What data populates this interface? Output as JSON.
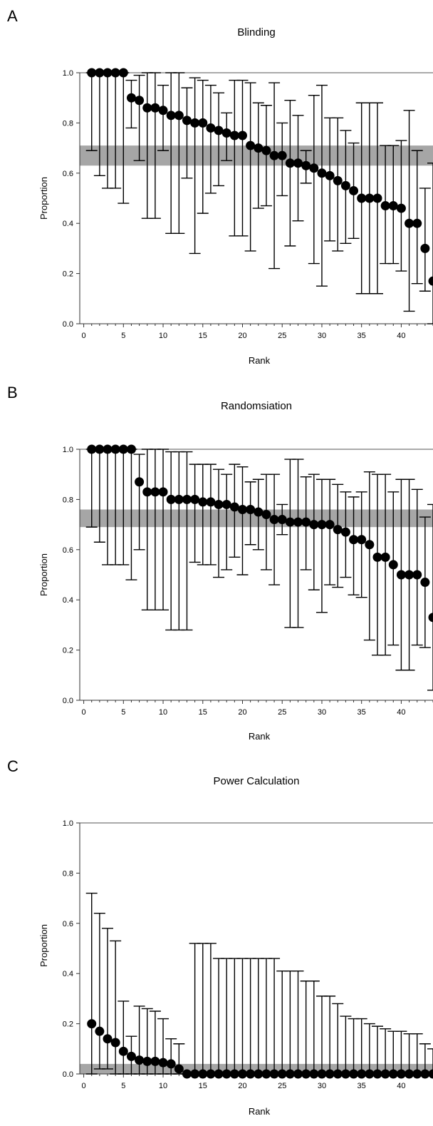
{
  "chart_data": [
    {
      "panel": "A",
      "type": "scatter",
      "title": "Blinding",
      "xlabel": "Rank",
      "ylabel": "Proportion",
      "xlim": [
        -0.5,
        44
      ],
      "ylim": [
        0,
        1.0
      ],
      "xticks": [
        0,
        5,
        10,
        15,
        20,
        25,
        30,
        35,
        40
      ],
      "yticks": [
        0.0,
        0.2,
        0.4,
        0.6,
        0.8,
        1.0
      ],
      "pooled_band": [
        0.63,
        0.71
      ],
      "x": [
        1,
        2,
        3,
        4,
        5,
        6,
        7,
        8,
        9,
        10,
        11,
        12,
        13,
        14,
        15,
        16,
        17,
        18,
        19,
        20,
        21,
        22,
        23,
        24,
        25,
        26,
        27,
        28,
        29,
        30,
        31,
        32,
        33,
        34,
        35,
        36,
        37,
        38,
        39,
        40,
        41,
        42,
        43,
        44
      ],
      "values": [
        1.0,
        1.0,
        1.0,
        1.0,
        1.0,
        0.9,
        0.89,
        0.86,
        0.86,
        0.85,
        0.83,
        0.83,
        0.81,
        0.8,
        0.8,
        0.78,
        0.77,
        0.76,
        0.75,
        0.75,
        0.71,
        0.7,
        0.69,
        0.67,
        0.67,
        0.64,
        0.64,
        0.63,
        0.62,
        0.6,
        0.59,
        0.57,
        0.55,
        0.53,
        0.5,
        0.5,
        0.5,
        0.47,
        0.47,
        0.46,
        0.4,
        0.4,
        0.3,
        0.17
      ],
      "lower": [
        0.69,
        0.59,
        0.54,
        0.54,
        0.48,
        0.78,
        0.65,
        0.42,
        0.42,
        0.69,
        0.36,
        0.36,
        0.58,
        0.28,
        0.44,
        0.52,
        0.55,
        0.65,
        0.35,
        0.35,
        0.29,
        0.46,
        0.47,
        0.22,
        0.51,
        0.31,
        0.41,
        0.56,
        0.24,
        0.15,
        0.33,
        0.29,
        0.32,
        0.34,
        0.12,
        0.12,
        0.12,
        0.24,
        0.24,
        0.21,
        0.05,
        0.16,
        0.13,
        0.0
      ],
      "upper": [
        1.0,
        1.0,
        1.0,
        1.0,
        1.0,
        0.97,
        0.99,
        1.0,
        1.0,
        0.95,
        1.0,
        1.0,
        0.94,
        0.98,
        0.97,
        0.95,
        0.92,
        0.84,
        0.97,
        0.97,
        0.96,
        0.88,
        0.87,
        0.96,
        0.8,
        0.89,
        0.83,
        0.69,
        0.91,
        0.95,
        0.82,
        0.82,
        0.77,
        0.72,
        0.88,
        0.88,
        0.88,
        0.71,
        0.71,
        0.73,
        0.85,
        0.69,
        0.54,
        0.64
      ]
    },
    {
      "panel": "B",
      "type": "scatter",
      "title": "Randomsiation",
      "xlabel": "Rank",
      "ylabel": "Proportion",
      "xlim": [
        -0.5,
        44
      ],
      "ylim": [
        0,
        1.0
      ],
      "xticks": [
        0,
        5,
        10,
        15,
        20,
        25,
        30,
        35,
        40
      ],
      "yticks": [
        0.0,
        0.2,
        0.4,
        0.6,
        0.8,
        1.0
      ],
      "pooled_band": [
        0.69,
        0.76
      ],
      "x": [
        1,
        2,
        3,
        4,
        5,
        6,
        7,
        8,
        9,
        10,
        11,
        12,
        13,
        14,
        15,
        16,
        17,
        18,
        19,
        20,
        21,
        22,
        23,
        24,
        25,
        26,
        27,
        28,
        29,
        30,
        31,
        32,
        33,
        34,
        35,
        36,
        37,
        38,
        39,
        40,
        41,
        42,
        43,
        44
      ],
      "values": [
        1.0,
        1.0,
        1.0,
        1.0,
        1.0,
        1.0,
        0.87,
        0.83,
        0.83,
        0.83,
        0.8,
        0.8,
        0.8,
        0.8,
        0.79,
        0.79,
        0.78,
        0.78,
        0.77,
        0.76,
        0.76,
        0.75,
        0.74,
        0.72,
        0.72,
        0.71,
        0.71,
        0.71,
        0.7,
        0.7,
        0.7,
        0.68,
        0.67,
        0.64,
        0.64,
        0.62,
        0.57,
        0.57,
        0.54,
        0.5,
        0.5,
        0.5,
        0.47,
        0.33
      ],
      "lower": [
        0.69,
        0.63,
        0.54,
        0.54,
        0.54,
        0.48,
        0.6,
        0.36,
        0.36,
        0.36,
        0.28,
        0.28,
        0.28,
        0.55,
        0.54,
        0.54,
        0.49,
        0.52,
        0.57,
        0.5,
        0.62,
        0.6,
        0.52,
        0.46,
        0.66,
        0.29,
        0.29,
        0.52,
        0.44,
        0.35,
        0.46,
        0.45,
        0.49,
        0.42,
        0.41,
        0.24,
        0.18,
        0.18,
        0.22,
        0.12,
        0.12,
        0.22,
        0.21,
        0.04
      ],
      "upper": [
        1.0,
        1.0,
        1.0,
        1.0,
        1.0,
        1.0,
        0.98,
        1.0,
        1.0,
        1.0,
        0.99,
        0.99,
        0.99,
        0.94,
        0.94,
        0.94,
        0.92,
        0.9,
        0.94,
        0.93,
        0.87,
        0.88,
        0.9,
        0.9,
        0.78,
        0.96,
        0.96,
        0.89,
        0.9,
        0.88,
        0.88,
        0.86,
        0.83,
        0.81,
        0.83,
        0.91,
        0.9,
        0.9,
        0.83,
        0.88,
        0.88,
        0.84,
        0.73,
        0.78
      ]
    },
    {
      "panel": "C",
      "type": "scatter",
      "title": "Power Calculation",
      "xlabel": "Rank",
      "ylabel": "Proportion",
      "xlim": [
        -0.5,
        44
      ],
      "ylim": [
        0,
        1.0
      ],
      "xticks": [
        0,
        5,
        10,
        15,
        20,
        25,
        30,
        35,
        40
      ],
      "yticks": [
        0.0,
        0.2,
        0.4,
        0.6,
        0.8,
        1.0
      ],
      "pooled_band": [
        0.0,
        0.04
      ],
      "x": [
        1,
        2,
        3,
        4,
        5,
        6,
        7,
        8,
        9,
        10,
        11,
        12,
        13,
        14,
        15,
        16,
        17,
        18,
        19,
        20,
        21,
        22,
        23,
        24,
        25,
        26,
        27,
        28,
        29,
        30,
        31,
        32,
        33,
        34,
        35,
        36,
        37,
        38,
        39,
        40,
        41,
        42,
        43,
        44
      ],
      "values": [
        0.2,
        0.17,
        0.14,
        0.125,
        0.09,
        0.07,
        0.055,
        0.05,
        0.05,
        0.045,
        0.04,
        0.02,
        0.0,
        0.0,
        0.0,
        0.0,
        0.0,
        0.0,
        0.0,
        0.0,
        0.0,
        0.0,
        0.0,
        0.0,
        0.0,
        0.0,
        0.0,
        0.0,
        0.0,
        0.0,
        0.0,
        0.0,
        0.0,
        0.0,
        0.0,
        0.0,
        0.0,
        0.0,
        0.0,
        0.0,
        0.0,
        0.0,
        0.0,
        0.0
      ],
      "lower": [
        0.0,
        0.02,
        0.02,
        0.0,
        0.0,
        0.0,
        0.0,
        0.0,
        0.0,
        0.0,
        0.0,
        0.0,
        0.0,
        0.0,
        0.0,
        0.0,
        0.0,
        0.0,
        0.0,
        0.0,
        0.0,
        0.0,
        0.0,
        0.0,
        0.0,
        0.0,
        0.0,
        0.0,
        0.0,
        0.0,
        0.0,
        0.0,
        0.0,
        0.0,
        0.0,
        0.0,
        0.0,
        0.0,
        0.0,
        0.0,
        0.0,
        0.0,
        0.0,
        0.0
      ],
      "upper": [
        0.72,
        0.64,
        0.58,
        0.53,
        0.29,
        0.15,
        0.27,
        0.26,
        0.25,
        0.22,
        0.14,
        0.12,
        0.0,
        0.52,
        0.52,
        0.52,
        0.46,
        0.46,
        0.46,
        0.46,
        0.46,
        0.46,
        0.46,
        0.46,
        0.41,
        0.41,
        0.41,
        0.37,
        0.37,
        0.31,
        0.31,
        0.28,
        0.23,
        0.22,
        0.22,
        0.2,
        0.19,
        0.18,
        0.17,
        0.17,
        0.16,
        0.16,
        0.12,
        0.1
      ]
    }
  ]
}
